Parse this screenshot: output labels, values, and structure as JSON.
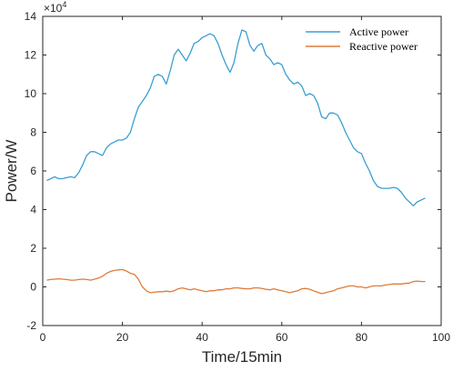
{
  "chart_data": {
    "type": "line",
    "xlabel": "Time/15min",
    "ylabel": "Power/W",
    "y_multiplier_label": "×10",
    "y_multiplier_exp": "4",
    "xlim": [
      0,
      100
    ],
    "ylim": [
      -2,
      14
    ],
    "x_ticks": [
      0,
      20,
      40,
      60,
      80,
      100
    ],
    "y_ticks": [
      -2,
      0,
      2,
      4,
      6,
      8,
      10,
      12,
      14
    ],
    "legend_position": "top-right",
    "grid": false,
    "series": [
      {
        "name": "Active power",
        "color": "#3b9fd1",
        "x": [
          1,
          2,
          3,
          4,
          5,
          6,
          7,
          8,
          9,
          10,
          11,
          12,
          13,
          14,
          15,
          16,
          17,
          18,
          19,
          20,
          21,
          22,
          23,
          24,
          25,
          26,
          27,
          28,
          29,
          30,
          31,
          32,
          33,
          34,
          35,
          36,
          37,
          38,
          39,
          40,
          41,
          42,
          43,
          44,
          45,
          46,
          47,
          48,
          49,
          50,
          51,
          52,
          53,
          54,
          55,
          56,
          57,
          58,
          59,
          60,
          61,
          62,
          63,
          64,
          65,
          66,
          67,
          68,
          69,
          70,
          71,
          72,
          73,
          74,
          75,
          76,
          77,
          78,
          79,
          80,
          81,
          82,
          83,
          84,
          85,
          86,
          87,
          88,
          89,
          90,
          91,
          92,
          93,
          94,
          95,
          96
        ],
        "y": [
          5.5,
          5.6,
          5.7,
          5.6,
          5.6,
          5.65,
          5.7,
          5.65,
          5.9,
          6.3,
          6.8,
          7.0,
          7.0,
          6.9,
          6.8,
          7.2,
          7.4,
          7.5,
          7.6,
          7.6,
          7.7,
          8.0,
          8.7,
          9.3,
          9.6,
          9.9,
          10.3,
          10.9,
          11.0,
          10.9,
          10.5,
          11.2,
          12.0,
          12.3,
          12.0,
          11.7,
          12.1,
          12.6,
          12.7,
          12.9,
          13.0,
          13.1,
          13.0,
          12.6,
          12.0,
          11.5,
          11.1,
          11.6,
          12.6,
          13.3,
          13.2,
          12.5,
          12.2,
          12.5,
          12.6,
          12.0,
          11.8,
          11.5,
          11.6,
          11.5,
          11.0,
          10.7,
          10.5,
          10.6,
          10.4,
          9.9,
          10.0,
          9.9,
          9.5,
          8.8,
          8.7,
          9.0,
          9.0,
          8.9,
          8.5,
          8.0,
          7.6,
          7.2,
          7.0,
          6.9,
          6.4,
          6.0,
          5.5,
          5.2,
          5.1,
          5.1,
          5.1,
          5.15,
          5.1,
          4.9,
          4.6,
          4.4,
          4.2,
          4.4,
          4.5,
          4.6
        ]
      },
      {
        "name": "Reactive power",
        "color": "#e07b39",
        "x": [
          1,
          2,
          3,
          4,
          5,
          6,
          7,
          8,
          9,
          10,
          11,
          12,
          13,
          14,
          15,
          16,
          17,
          18,
          19,
          20,
          21,
          22,
          23,
          24,
          25,
          26,
          27,
          28,
          29,
          30,
          31,
          32,
          33,
          34,
          35,
          36,
          37,
          38,
          39,
          40,
          41,
          42,
          43,
          44,
          45,
          46,
          47,
          48,
          49,
          50,
          51,
          52,
          53,
          54,
          55,
          56,
          57,
          58,
          59,
          60,
          61,
          62,
          63,
          64,
          65,
          66,
          67,
          68,
          69,
          70,
          71,
          72,
          73,
          74,
          75,
          76,
          77,
          78,
          79,
          80,
          81,
          82,
          83,
          84,
          85,
          86,
          87,
          88,
          89,
          90,
          91,
          92,
          93,
          94,
          95,
          96
        ],
        "y": [
          0.35,
          0.38,
          0.4,
          0.42,
          0.4,
          0.38,
          0.35,
          0.35,
          0.38,
          0.4,
          0.38,
          0.35,
          0.4,
          0.45,
          0.55,
          0.7,
          0.8,
          0.85,
          0.88,
          0.9,
          0.82,
          0.7,
          0.65,
          0.4,
          0.0,
          -0.2,
          -0.3,
          -0.28,
          -0.25,
          -0.25,
          -0.22,
          -0.25,
          -0.2,
          -0.1,
          -0.05,
          -0.1,
          -0.15,
          -0.1,
          -0.15,
          -0.2,
          -0.25,
          -0.2,
          -0.2,
          -0.15,
          -0.15,
          -0.1,
          -0.1,
          -0.05,
          -0.05,
          -0.08,
          -0.1,
          -0.1,
          -0.05,
          -0.05,
          -0.08,
          -0.12,
          -0.15,
          -0.1,
          -0.15,
          -0.2,
          -0.25,
          -0.3,
          -0.25,
          -0.2,
          -0.1,
          -0.08,
          -0.12,
          -0.2,
          -0.28,
          -0.35,
          -0.3,
          -0.25,
          -0.2,
          -0.1,
          -0.05,
          0.0,
          0.05,
          0.05,
          0.0,
          0.0,
          -0.05,
          0.0,
          0.05,
          0.05,
          0.05,
          0.1,
          0.12,
          0.15,
          0.15,
          0.15,
          0.18,
          0.2,
          0.28,
          0.3,
          0.28,
          0.28
        ]
      }
    ]
  }
}
